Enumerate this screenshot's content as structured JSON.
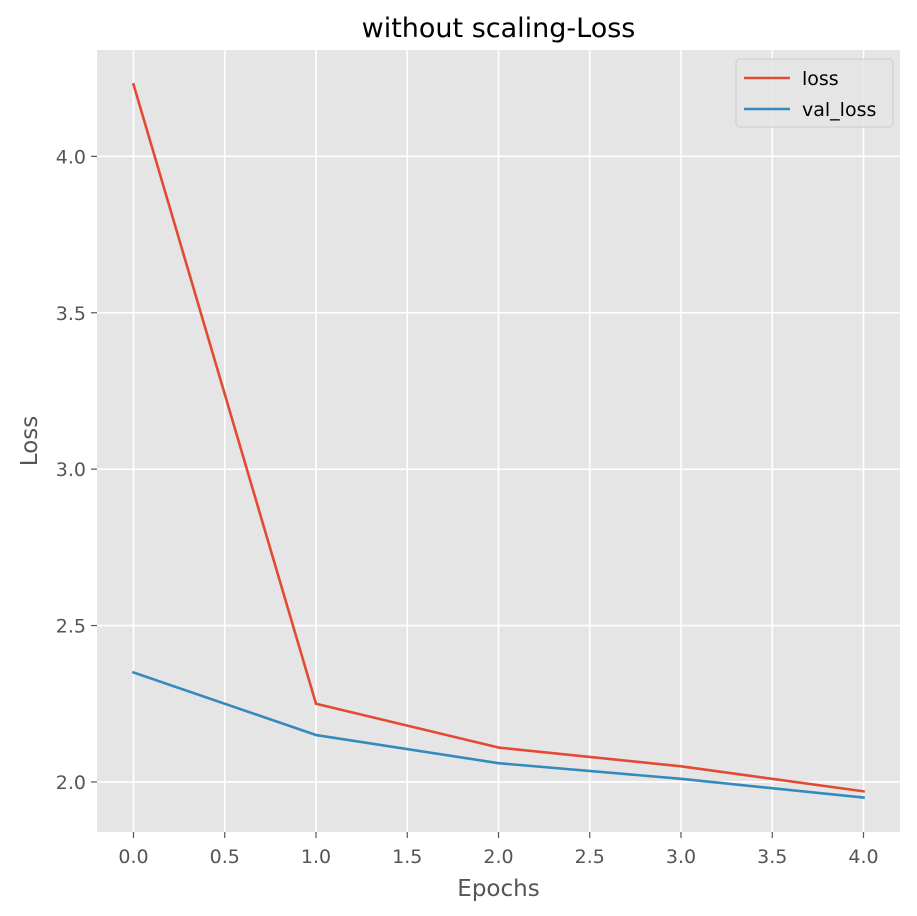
{
  "chart_data": {
    "type": "line",
    "title": "without scaling-Loss",
    "xlabel": "Epochs",
    "ylabel": "Loss",
    "x": [
      0,
      1,
      2,
      3,
      4
    ],
    "xlim": [
      -0.2,
      4.2
    ],
    "ylim": [
      1.84,
      4.34
    ],
    "xticks": [
      0.0,
      0.5,
      1.0,
      1.5,
      2.0,
      2.5,
      3.0,
      3.5,
      4.0
    ],
    "xtick_labels": [
      "0.0",
      "0.5",
      "1.0",
      "1.5",
      "2.0",
      "2.5",
      "3.0",
      "3.5",
      "4.0"
    ],
    "yticks": [
      2.0,
      2.5,
      3.0,
      3.5,
      4.0
    ],
    "ytick_labels": [
      "2.0",
      "2.5",
      "3.0",
      "3.5",
      "4.0"
    ],
    "grid": true,
    "legend_position": "top-right",
    "series": [
      {
        "name": "loss",
        "color": "#E24A33",
        "values": [
          4.23,
          2.25,
          2.11,
          2.05,
          1.97
        ]
      },
      {
        "name": "val_loss",
        "color": "#348ABD",
        "values": [
          2.35,
          2.15,
          2.06,
          2.01,
          1.95
        ]
      }
    ],
    "colors": {
      "plot_background": "#E5E5E5",
      "grid": "#FFFFFF"
    }
  }
}
